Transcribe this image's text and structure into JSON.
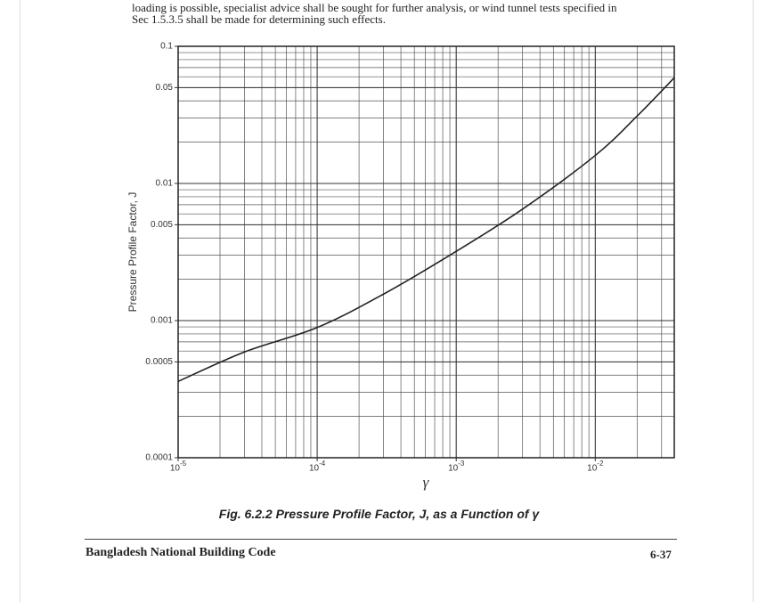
{
  "paragraph": [
    "loading is possible, specialist advice shall be sought  for further analysis, or wind tunnel tests specified in",
    "Sec 1.5.3.5 shall be made for determining such effects."
  ],
  "chart_data": {
    "type": "line",
    "xscale": "log",
    "yscale": "log",
    "grid": "major-minor",
    "ylabel": "Pressure Profile Factor, J",
    "xlabel": "γ",
    "color": "#222",
    "x": [
      1e-05,
      3e-05,
      0.0001,
      0.0003,
      0.001,
      0.003,
      0.01,
      0.02,
      0.037
    ],
    "values": [
      0.00036,
      0.00059,
      0.00089,
      0.00156,
      0.0032,
      0.0065,
      0.016,
      0.031,
      0.059
    ],
    "xlim": [
      1e-05,
      0.037
    ],
    "ylim": [
      0.0001,
      0.1
    ],
    "xticks": [
      {
        "value": 1e-05,
        "label": "10-5"
      },
      {
        "value": 0.0001,
        "label": "10-4"
      },
      {
        "value": 0.001,
        "label": "10-3"
      },
      {
        "value": 0.01,
        "label": "10-2"
      }
    ],
    "yticks": [
      0.0001,
      0.0005,
      0.001,
      0.005,
      0.01,
      0.05,
      0.1
    ]
  },
  "caption": "Fig. 6.2.2 Pressure Profile Factor, J, as a Function of γ",
  "footer": {
    "title": "Bangladesh National Building Code",
    "page": "6-37"
  }
}
